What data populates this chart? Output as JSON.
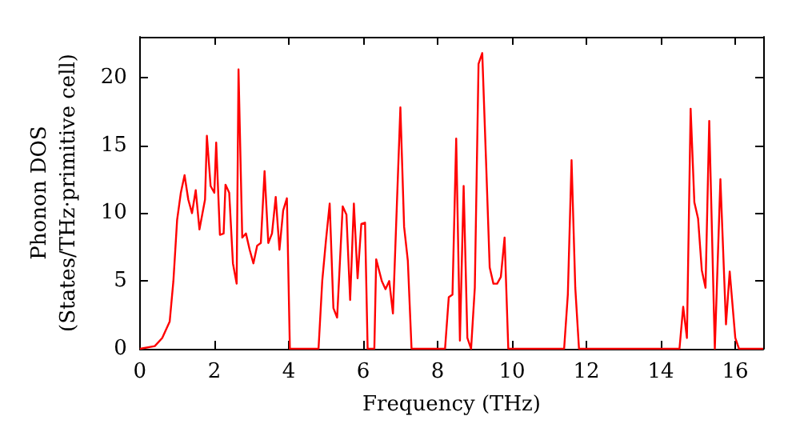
{
  "chart_data": {
    "type": "line",
    "xlabel": "Frequency (THz)",
    "ylabel": "Phonon DOS\n(States/THz·primitive cell)",
    "xlim": [
      0,
      16.75
    ],
    "xticks": [
      0,
      2,
      4,
      6,
      8,
      10,
      12,
      14,
      16
    ],
    "ylim": [
      0,
      23
    ],
    "yticks": [
      0,
      5,
      10,
      15,
      20
    ],
    "grid": false,
    "marker": "none",
    "line_style": "solid",
    "series": [
      {
        "color": "#ff0000",
        "x": [
          0,
          0.4,
          0.6,
          0.8,
          0.9,
          1.0,
          1.1,
          1.2,
          1.3,
          1.4,
          1.5,
          1.6,
          1.75,
          1.8,
          1.9,
          2.0,
          2.05,
          2.15,
          2.25,
          2.3,
          2.4,
          2.5,
          2.6,
          2.65,
          2.75,
          2.85,
          2.95,
          3.05,
          3.15,
          3.25,
          3.35,
          3.45,
          3.55,
          3.65,
          3.75,
          3.85,
          3.95,
          4.03,
          4.8,
          4.9,
          5.0,
          5.1,
          5.2,
          5.3,
          5.45,
          5.55,
          5.65,
          5.75,
          5.85,
          5.95,
          6.05,
          6.12,
          6.3,
          6.35,
          6.5,
          6.6,
          6.7,
          6.8,
          7.0,
          7.1,
          7.2,
          7.3,
          8.2,
          8.3,
          8.4,
          8.5,
          8.6,
          8.7,
          8.8,
          8.9,
          9.0,
          9.1,
          9.2,
          9.3,
          9.4,
          9.5,
          9.6,
          9.7,
          9.8,
          9.9,
          11.4,
          11.5,
          11.6,
          11.7,
          11.8,
          14.5,
          14.6,
          14.7,
          14.8,
          14.9,
          15.0,
          15.1,
          15.2,
          15.3,
          15.45,
          15.6,
          15.75,
          15.85,
          16.0,
          16.1,
          16.75
        ],
        "values": [
          0,
          0.2,
          0.8,
          2,
          5,
          9.5,
          11.5,
          12.8,
          11,
          10,
          11.7,
          8.8,
          11,
          15.7,
          12,
          11.5,
          15.2,
          8.4,
          8.5,
          12.1,
          11.5,
          6.3,
          4.8,
          20.6,
          8.2,
          8.5,
          7.3,
          6.3,
          7.6,
          7.8,
          13.1,
          7.8,
          8.5,
          11.2,
          7.3,
          10.2,
          11.1,
          0,
          0,
          5,
          8,
          10.7,
          3,
          2.3,
          10.5,
          9.9,
          3.6,
          10.7,
          5.2,
          9.2,
          9.3,
          0,
          0,
          6.6,
          5,
          4.4,
          5,
          2.6,
          17.8,
          9,
          6.5,
          0,
          0,
          3.8,
          4,
          15.5,
          0.6,
          12,
          0.8,
          0,
          4.5,
          21,
          21.8,
          14,
          6,
          4.8,
          4.8,
          5.3,
          8.2,
          0,
          0,
          4,
          13.9,
          4.5,
          0,
          0,
          3.1,
          0.8,
          17.7,
          10.8,
          9.6,
          5.8,
          4.5,
          16.8,
          0,
          12.5,
          1.8,
          5.7,
          0.8,
          0,
          0
        ]
      }
    ]
  }
}
